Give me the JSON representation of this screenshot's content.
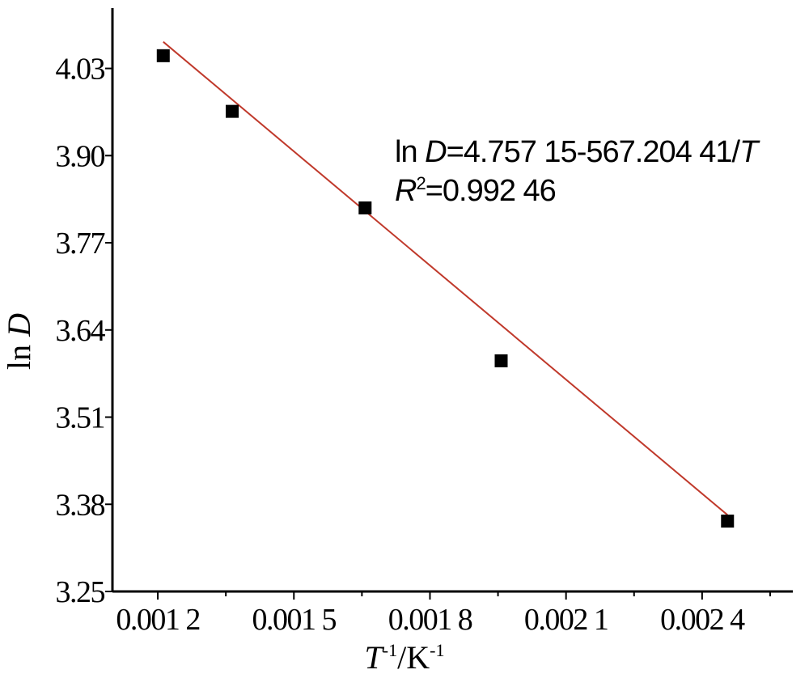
{
  "chart_data": {
    "type": "scatter",
    "xlabel": {
      "symbol": "T",
      "sup1": "-1",
      "unit": "/K",
      "sup2": "-1"
    },
    "ylabel": {
      "prefix": "ln ",
      "var": "D"
    },
    "xlim": [
      0.0011,
      0.0026
    ],
    "ylim": [
      3.25,
      4.12
    ],
    "xticks": [
      {
        "value": 0.0012,
        "label": "0.001 2"
      },
      {
        "value": 0.0015,
        "label": "0.001 5"
      },
      {
        "value": 0.0018,
        "label": "0.001 8"
      },
      {
        "value": 0.0021,
        "label": "0.002 1"
      },
      {
        "value": 0.0024,
        "label": "0.002 4"
      }
    ],
    "xminor": [
      0.00135,
      0.00165,
      0.00195,
      0.00225,
      0.00255
    ],
    "yticks": [
      {
        "value": 3.25,
        "label": "3.25"
      },
      {
        "value": 3.38,
        "label": "3.38"
      },
      {
        "value": 3.51,
        "label": "3.51"
      },
      {
        "value": 3.64,
        "label": "3.64"
      },
      {
        "value": 3.77,
        "label": "3.77"
      },
      {
        "value": 3.9,
        "label": "3.90"
      },
      {
        "value": 4.03,
        "label": "4.03"
      }
    ],
    "series": [
      {
        "points": [
          {
            "x": 0.001212,
            "y": 4.049
          },
          {
            "x": 0.001364,
            "y": 3.966
          },
          {
            "x": 0.001657,
            "y": 3.822
          },
          {
            "x": 0.001957,
            "y": 3.594
          },
          {
            "x": 0.002456,
            "y": 3.355
          }
        ],
        "color": "#000000",
        "marker": "square"
      }
    ],
    "fit": {
      "intercept": 4.75715,
      "slope": -567.20441,
      "x_range": [
        0.001212,
        0.002456
      ],
      "color": "#c0392b"
    },
    "annotation": {
      "line1": {
        "ln": "ln ",
        "var": "D",
        "rest": "=4.757 15-567.204 41/",
        "var2": "T"
      },
      "line2": {
        "var": "R",
        "sup": "2",
        "rest": "=0.992 46"
      }
    },
    "grid": false,
    "legend": "none"
  }
}
